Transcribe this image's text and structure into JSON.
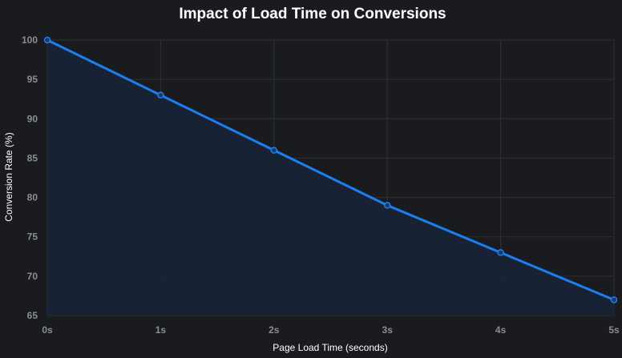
{
  "chart_data": {
    "type": "area",
    "title": "Impact of Load Time on Conversions",
    "xlabel": "Page Load Time (seconds)",
    "ylabel": "Conversion Rate (%)",
    "categories": [
      "0s",
      "1s",
      "2s",
      "3s",
      "4s",
      "5s"
    ],
    "series": [
      {
        "values": [
          100,
          93,
          86,
          79,
          73,
          67
        ]
      }
    ],
    "ylim": [
      65,
      100
    ],
    "yticks": [
      65,
      70,
      75,
      80,
      85,
      90,
      95,
      100
    ],
    "grid": true,
    "colors": {
      "background": "#1a1b1f",
      "line": "#1a7ff0",
      "fill": "#172436",
      "grid": "#2d3038",
      "tick_text": "#8a8d93",
      "text": "#ffffff"
    }
  }
}
